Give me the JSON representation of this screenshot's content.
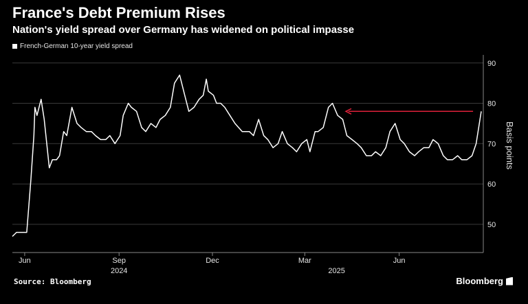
{
  "title": "France's Debt Premium Rises",
  "subtitle": "Nation's yield spread over Germany has widened on political impasse",
  "source": "Source: Bloomberg",
  "brand": "Bloomberg",
  "colors": {
    "background": "#000000",
    "line": "#ffffff",
    "grid": "#3a3a3a",
    "arrow": "#e0213a"
  },
  "chart_data": {
    "type": "line",
    "title": "France's Debt Premium Rises",
    "subtitle": "Nation's yield spread over Germany has widened on political impasse",
    "ylabel": "Basis points",
    "ylim": [
      43,
      92
    ],
    "yticks": [
      50,
      60,
      70,
      80,
      90
    ],
    "xlim": [
      "2024-05-20",
      "2025-08-22"
    ],
    "xticks": [
      {
        "date": "2024-06-01",
        "label": "Jun"
      },
      {
        "date": "2024-09-01",
        "label": "Sep"
      },
      {
        "date": "2024-12-01",
        "label": "Dec"
      },
      {
        "date": "2025-03-01",
        "label": "Mar"
      },
      {
        "date": "2025-06-01",
        "label": "Jun"
      }
    ],
    "year_labels": [
      {
        "date": "2024-09-01",
        "label": "2024"
      },
      {
        "date": "2025-04-01",
        "label": "2025"
      }
    ],
    "grid": true,
    "legend": "top-left",
    "series": [
      {
        "name": "French-German 10-year yield spread",
        "x": [
          "2024-05-20",
          "2024-05-24",
          "2024-05-28",
          "2024-06-03",
          "2024-06-07",
          "2024-06-10",
          "2024-06-11",
          "2024-06-13",
          "2024-06-17",
          "2024-06-20",
          "2024-06-25",
          "2024-06-28",
          "2024-07-02",
          "2024-07-05",
          "2024-07-09",
          "2024-07-12",
          "2024-07-17",
          "2024-07-22",
          "2024-07-26",
          "2024-07-31",
          "2024-08-05",
          "2024-08-09",
          "2024-08-14",
          "2024-08-19",
          "2024-08-23",
          "2024-08-28",
          "2024-09-02",
          "2024-09-05",
          "2024-09-10",
          "2024-09-13",
          "2024-09-18",
          "2024-09-23",
          "2024-09-27",
          "2024-10-02",
          "2024-10-07",
          "2024-10-11",
          "2024-10-16",
          "2024-10-21",
          "2024-10-25",
          "2024-10-30",
          "2024-11-04",
          "2024-11-08",
          "2024-11-13",
          "2024-11-18",
          "2024-11-22",
          "2024-11-25",
          "2024-11-27",
          "2024-12-02",
          "2024-12-05",
          "2024-12-09",
          "2024-12-13",
          "2024-12-18",
          "2024-12-23",
          "2024-12-30",
          "2025-01-06",
          "2025-01-10",
          "2025-01-15",
          "2025-01-20",
          "2025-01-24",
          "2025-01-29",
          "2025-02-03",
          "2025-02-07",
          "2025-02-12",
          "2025-02-17",
          "2025-02-21",
          "2025-02-26",
          "2025-03-03",
          "2025-03-06",
          "2025-03-11",
          "2025-03-14",
          "2025-03-19",
          "2025-03-24",
          "2025-03-28",
          "2025-04-02",
          "2025-04-07",
          "2025-04-11",
          "2025-04-16",
          "2025-04-21",
          "2025-04-25",
          "2025-04-30",
          "2025-05-05",
          "2025-05-09",
          "2025-05-14",
          "2025-05-19",
          "2025-05-23",
          "2025-05-28",
          "2025-06-02",
          "2025-06-06",
          "2025-06-11",
          "2025-06-16",
          "2025-06-20",
          "2025-06-25",
          "2025-06-30",
          "2025-07-04",
          "2025-07-09",
          "2025-07-14",
          "2025-07-18",
          "2025-07-23",
          "2025-07-28",
          "2025-08-01",
          "2025-08-06",
          "2025-08-11",
          "2025-08-15",
          "2025-08-20"
        ],
        "values": [
          47,
          48,
          48,
          48,
          61,
          72,
          79,
          77,
          81,
          76,
          64,
          66,
          66,
          67,
          73,
          72,
          79,
          75,
          74,
          73,
          73,
          72,
          71,
          71,
          72,
          70,
          72,
          77,
          80,
          79,
          78,
          74,
          73,
          75,
          74,
          76,
          77,
          79,
          85,
          87,
          82,
          78,
          79,
          81,
          82,
          86,
          83,
          82,
          80,
          80,
          79,
          77,
          75,
          73,
          73,
          72,
          76,
          72,
          71,
          69,
          70,
          73,
          70,
          69,
          68,
          70,
          71,
          68,
          73,
          73,
          74,
          79,
          80,
          77,
          76,
          72,
          71,
          70,
          69,
          67,
          67,
          68,
          67,
          69,
          73,
          75,
          71,
          70,
          68,
          67,
          68,
          69,
          69,
          71,
          70,
          67,
          66,
          66,
          67,
          66,
          66,
          67,
          70,
          78
        ]
      }
    ],
    "annotations": [
      {
        "type": "arrow",
        "color": "#e0213a",
        "y": 78,
        "x_from": "2025-08-12",
        "x_to": "2025-04-10"
      }
    ]
  }
}
